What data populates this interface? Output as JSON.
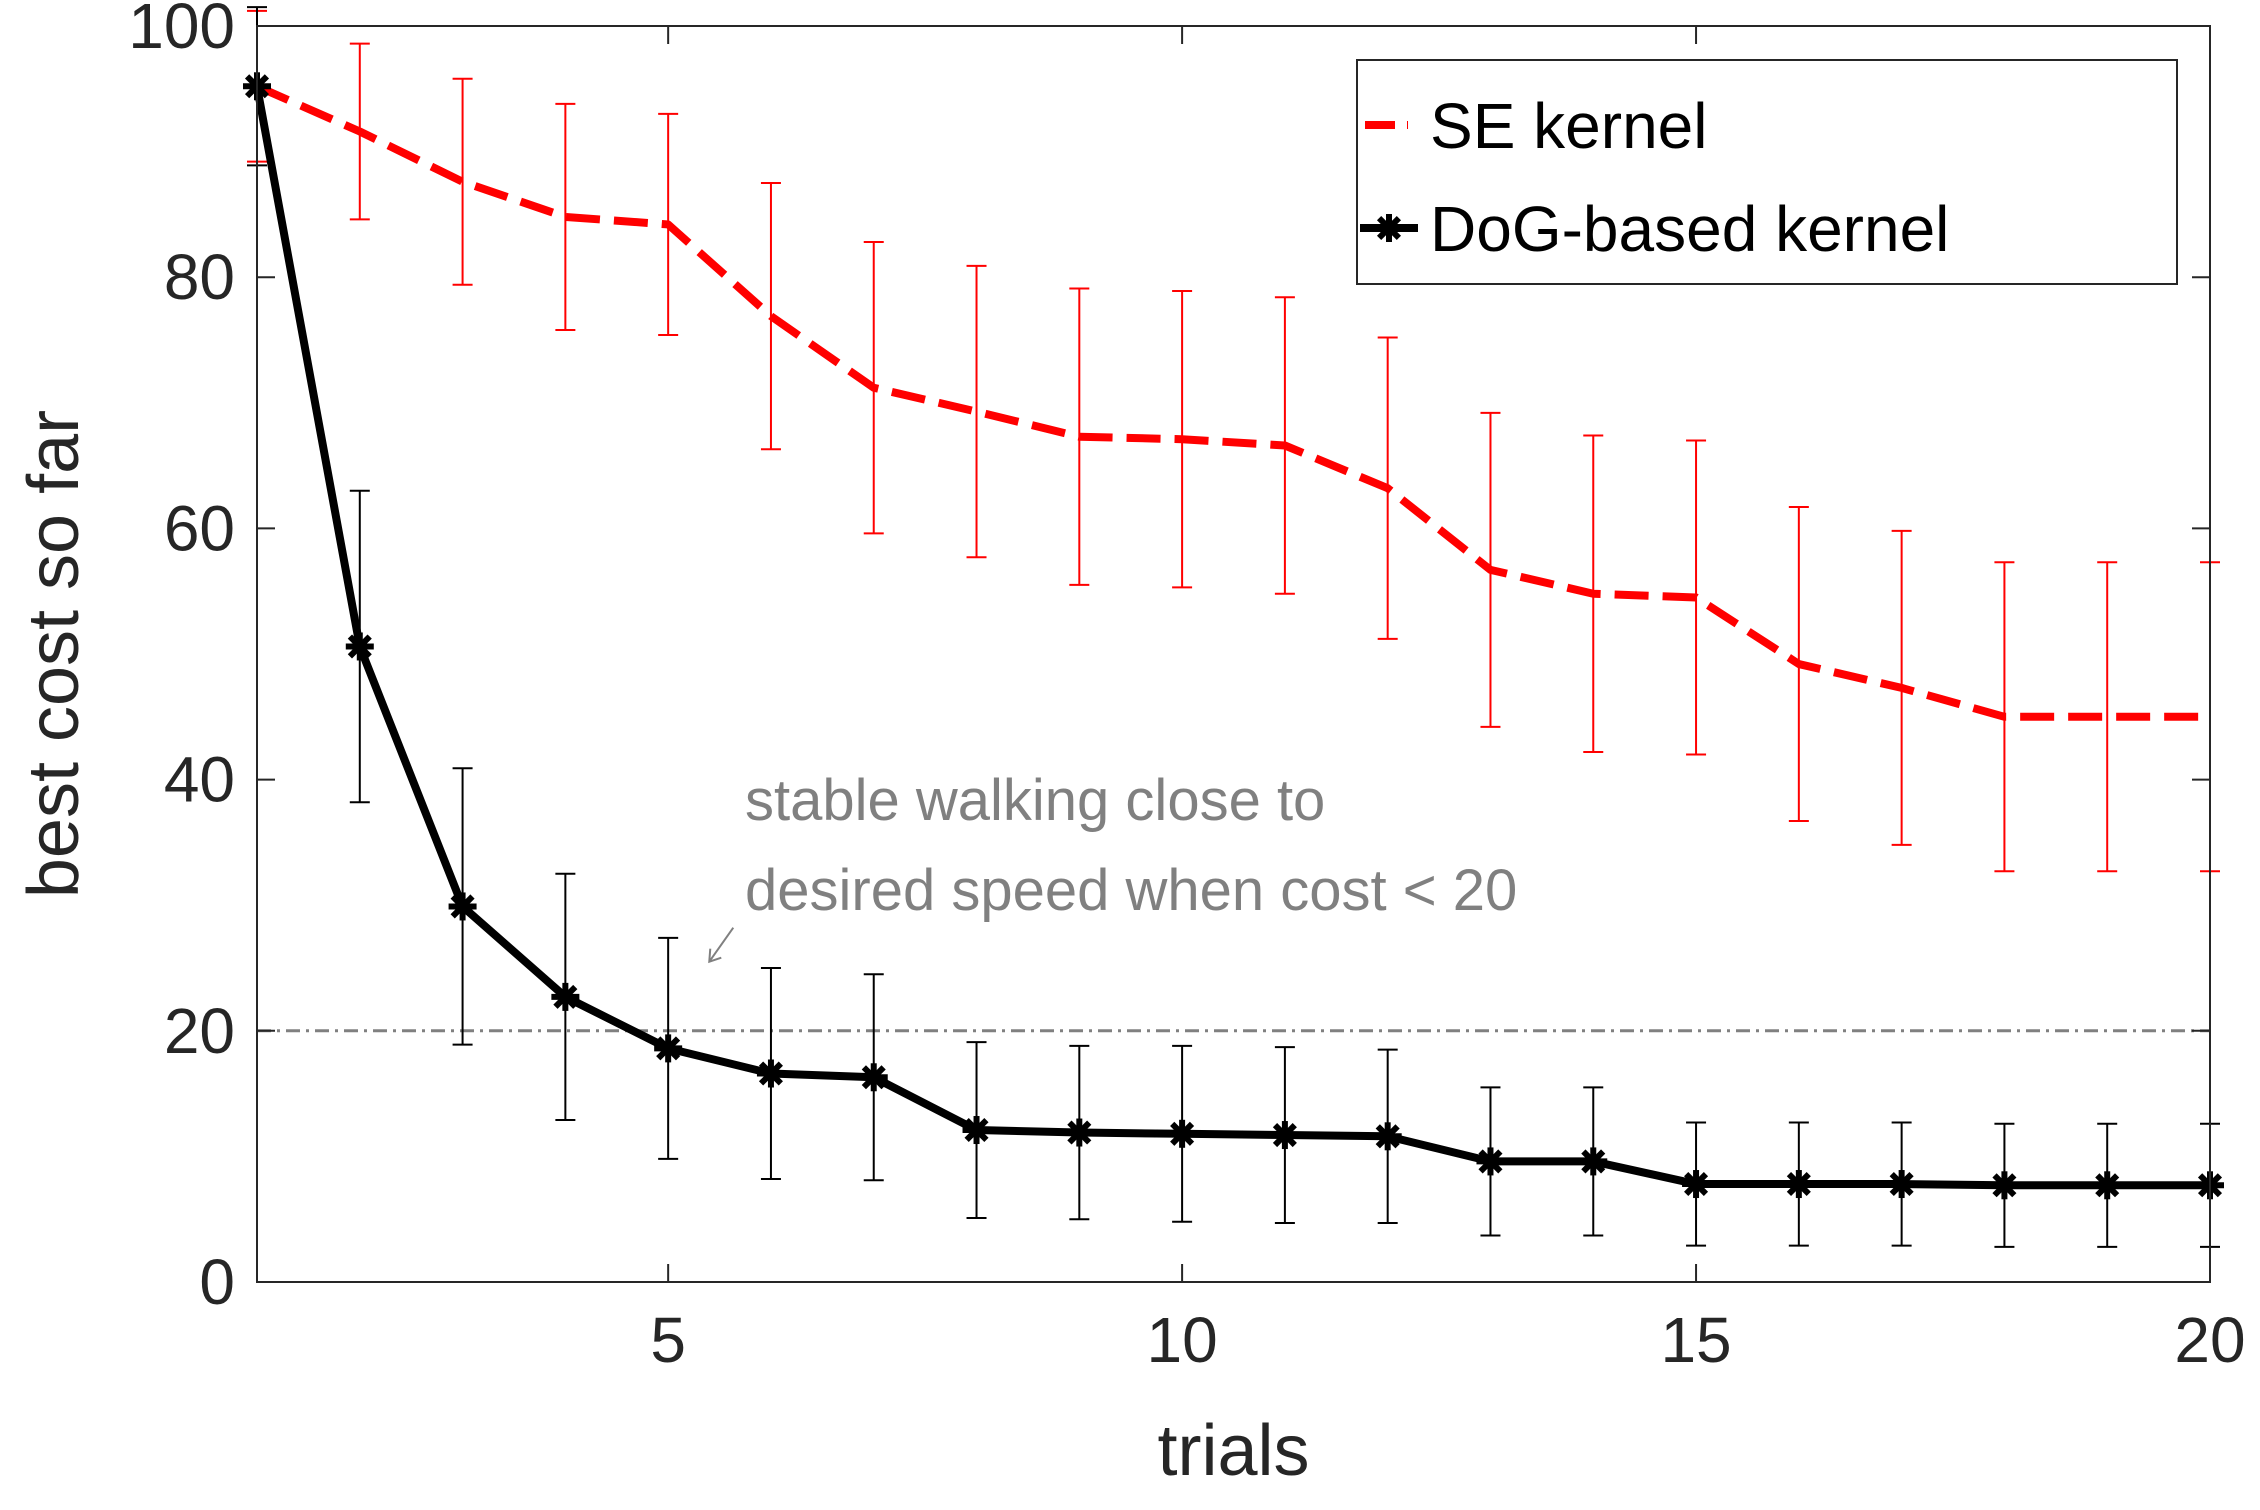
{
  "chart_data": {
    "type": "line",
    "title": "",
    "xlabel": "trials",
    "ylabel": "best cost so far",
    "xlim": [
      1,
      20
    ],
    "ylim": [
      0,
      100
    ],
    "xticks": [
      5,
      10,
      15,
      20
    ],
    "yticks": [
      0,
      20,
      40,
      60,
      80,
      100
    ],
    "grid": false,
    "legend_position": "top-right",
    "series": [
      {
        "name": "SE kernel",
        "color": "#ff0000",
        "line_style": "dashed",
        "marker": "none",
        "x": [
          1,
          2,
          3,
          4,
          5,
          6,
          7,
          8,
          9,
          10,
          11,
          12,
          13,
          14,
          15,
          16,
          17,
          18,
          19,
          20
        ],
        "y": [
          95.2,
          91.6,
          87.6,
          84.8,
          84.2,
          76.9,
          71.2,
          69.3,
          67.3,
          67.1,
          66.6,
          63.2,
          56.7,
          54.8,
          54.5,
          49.2,
          47.3,
          45.0,
          45.0,
          45.0
        ],
        "err": [
          6.0,
          7.0,
          8.2,
          9.0,
          8.8,
          10.6,
          11.6,
          11.6,
          11.8,
          11.8,
          11.8,
          12.0,
          12.5,
          12.6,
          12.5,
          12.5,
          12.5,
          12.3,
          12.3,
          12.3
        ]
      },
      {
        "name": "DoG-based kernel",
        "color": "#000000",
        "line_style": "solid",
        "marker": "asterisk",
        "x": [
          1,
          2,
          3,
          4,
          5,
          6,
          7,
          8,
          9,
          10,
          11,
          12,
          13,
          14,
          15,
          16,
          17,
          18,
          19,
          20
        ],
        "y": [
          95.2,
          50.6,
          29.9,
          22.7,
          18.6,
          16.6,
          16.3,
          12.1,
          11.9,
          11.8,
          11.7,
          11.6,
          9.6,
          9.6,
          7.8,
          7.8,
          7.8,
          7.7,
          7.7,
          7.7
        ],
        "err": [
          6.3,
          12.4,
          11.0,
          9.8,
          8.8,
          8.4,
          8.2,
          7.0,
          6.9,
          7.0,
          7.0,
          6.9,
          5.9,
          5.9,
          4.9,
          4.9,
          4.9,
          4.9,
          4.9,
          4.9
        ]
      }
    ],
    "reference_line": {
      "y": 20,
      "color": "#808080",
      "line_style": "dash-dot"
    },
    "annotation": {
      "lines": [
        "stable walking close to",
        "desired speed when cost < 20"
      ],
      "color": "#808080",
      "arrow_target": {
        "x": 5.4,
        "y": 25.5
      }
    }
  }
}
